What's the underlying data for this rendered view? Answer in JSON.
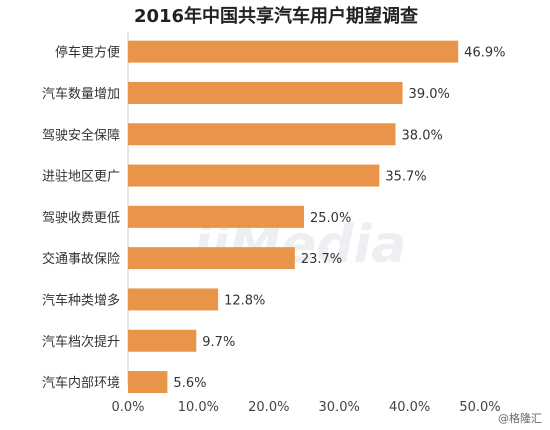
{
  "chart_data": {
    "type": "bar",
    "orientation": "horizontal",
    "title": "2016年中国共享汽车用户期望调查",
    "categories": [
      "停车更方便",
      "汽车数量增加",
      "驾驶安全保障",
      "进驻地区更广",
      "驾驶收费更低",
      "交通事故保险",
      "汽车种类增多",
      "汽车档次提升",
      "汽车内部环境"
    ],
    "values": [
      46.9,
      39.0,
      38.0,
      35.7,
      25.0,
      23.7,
      12.8,
      9.7,
      5.6
    ],
    "value_labels": [
      "46.9%",
      "39.0%",
      "38.0%",
      "35.7%",
      "25.0%",
      "23.7%",
      "12.8%",
      "9.7%",
      "5.6%"
    ],
    "xlim": [
      0,
      50
    ],
    "xticks": [
      "0.0%",
      "10.0%",
      "20.0%",
      "30.0%",
      "40.0%",
      "50.0%"
    ],
    "bar_color": "#e8954a",
    "grid": false
  },
  "watermark": "iiMedia",
  "credit": "@格隆汇"
}
